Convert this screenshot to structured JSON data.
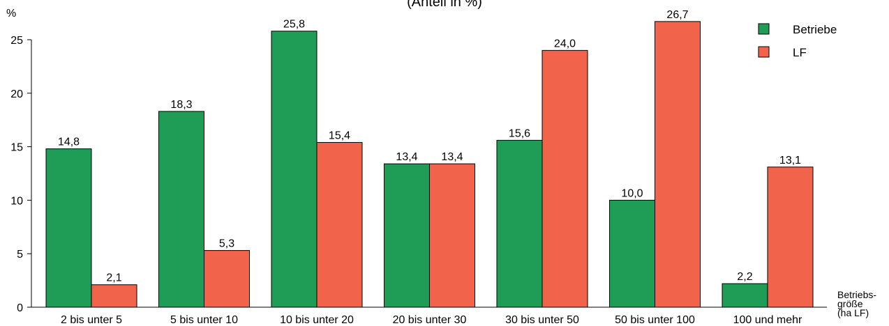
{
  "chart_data": {
    "type": "bar",
    "title": "(Anteil in %)",
    "ylabel": "%",
    "xlabel": "Betriebs-\ngröße\n(ha LF)",
    "ylim": [
      0,
      25
    ],
    "yticks": [
      0,
      5,
      10,
      15,
      20,
      25
    ],
    "categories": [
      "2 bis unter 5",
      "5 bis unter 10",
      "10 bis unter 20",
      "20 bis unter 30",
      "30 bis unter 50",
      "50 bis unter 100",
      "100 und mehr"
    ],
    "series": [
      {
        "name": "Betriebe",
        "color": "#1f9c55",
        "values": [
          14.8,
          18.3,
          25.8,
          13.4,
          15.6,
          10.0,
          2.2
        ],
        "labels": [
          "14,8",
          "18,3",
          "25,8",
          "13,4",
          "15,6",
          "10,0",
          "2,2"
        ]
      },
      {
        "name": "LF",
        "color": "#f2634b",
        "values": [
          2.1,
          5.3,
          15.4,
          13.4,
          24.0,
          26.7,
          13.1
        ],
        "labels": [
          "2,1",
          "5,3",
          "15,4",
          "13,4",
          "24,0",
          "26,7",
          "13,1"
        ]
      }
    ],
    "legend_position": "top-right",
    "grid": false
  }
}
